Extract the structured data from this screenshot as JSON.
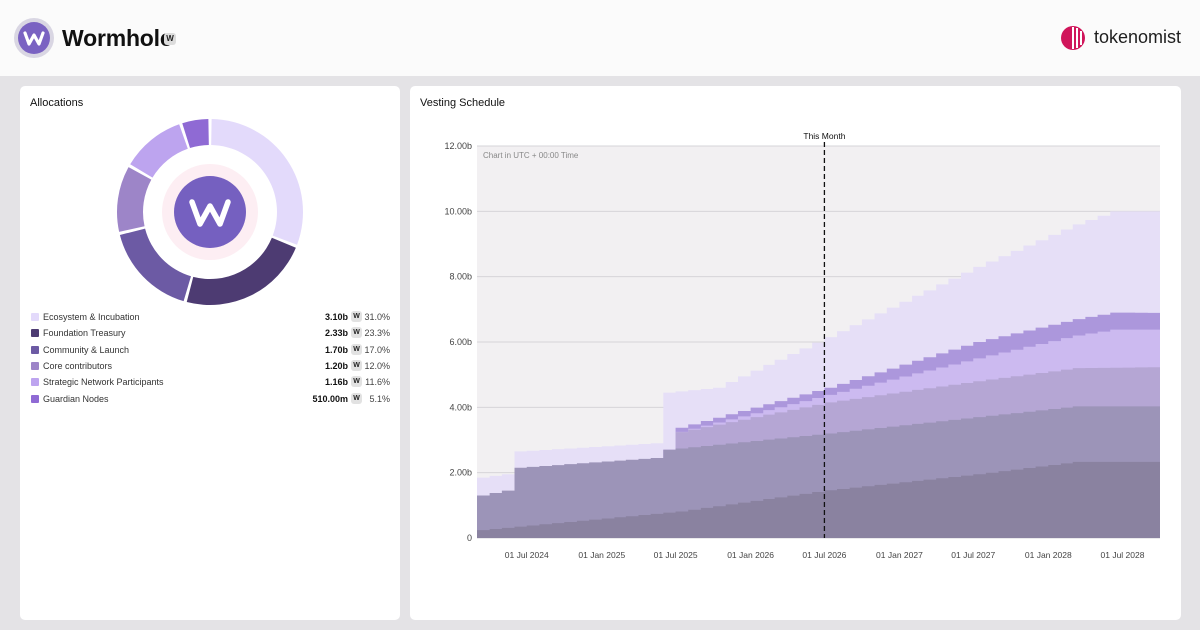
{
  "project": {
    "name": "Wormhole",
    "token_badge": "W",
    "logo_letter": "W"
  },
  "brand": {
    "name": "tokenomist"
  },
  "allocations": {
    "title": "Allocations",
    "center_letter": "W",
    "items": [
      {
        "label": "Ecosystem & Incubation",
        "amount": "3.10b",
        "token": "W",
        "percent": "31.0%",
        "value": 31.0,
        "color": "#e3dafb"
      },
      {
        "label": "Foundation Treasury",
        "amount": "2.33b",
        "token": "W",
        "percent": "23.3%",
        "value": 23.3,
        "color": "#4d3b72"
      },
      {
        "label": "Community & Launch",
        "amount": "1.70b",
        "token": "W",
        "percent": "17.0%",
        "value": 17.0,
        "color": "#6c5aa4"
      },
      {
        "label": "Core contributors",
        "amount": "1.20b",
        "token": "W",
        "percent": "12.0%",
        "value": 12.0,
        "color": "#9d85c8"
      },
      {
        "label": "Strategic Network Participants",
        "amount": "1.16b",
        "token": "W",
        "percent": "11.6%",
        "value": 11.6,
        "color": "#bda4ef"
      },
      {
        "label": "Guardian Nodes",
        "amount": "510.00m",
        "token": "W",
        "percent": "5.1%",
        "value": 5.1,
        "color": "#8f6ad4"
      }
    ]
  },
  "chart_data": {
    "type": "area",
    "title": "Vesting Schedule",
    "note": "Chart in UTC + 00:00 Time",
    "marker_label": "This Month",
    "marker_date": "2026-07-01",
    "x_start": "2024-03-01",
    "x_end": "2028-10-01",
    "ylim": [
      0,
      12
    ],
    "y_ticks": [
      0,
      2,
      4,
      6,
      8,
      10,
      12
    ],
    "y_tick_labels": [
      "0",
      "2.00b",
      "4.00b",
      "6.00b",
      "8.00b",
      "10.00b",
      "12.00b"
    ],
    "x_ticks": [
      "2024-07-01",
      "2025-01-01",
      "2025-07-01",
      "2026-01-01",
      "2026-07-01",
      "2027-01-01",
      "2027-07-01",
      "2028-01-01",
      "2028-07-01"
    ],
    "x_tick_labels": [
      "01 Jul 2024",
      "01 Jan 2025",
      "01 Jul 2025",
      "01 Jan 2026",
      "01 Jul 2026",
      "01 Jan 2027",
      "01 Jul 2027",
      "01 Jan 2028",
      "01 Jul 2028"
    ],
    "stack_order_bottom_to_top": [
      "Foundation Treasury",
      "Community & Launch",
      "Core contributors",
      "Strategic Network Participants",
      "Guardian Nodes",
      "Ecosystem & Incubation"
    ],
    "cumulative_series": [
      {
        "name": "Foundation Treasury",
        "color": "#8a82a0",
        "points": [
          [
            "2024-03-01",
            0.24
          ],
          [
            "2025-07-01",
            0.81
          ],
          [
            "2026-07-01",
            1.46
          ],
          [
            "2027-07-01",
            1.95
          ],
          [
            "2028-03-01",
            2.33
          ],
          [
            "2028-10-01",
            2.33
          ]
        ]
      },
      {
        "name": "Community & Launch",
        "color": "#9c94b8",
        "points": [
          [
            "2024-03-01",
            1.3
          ],
          [
            "2024-05-01",
            1.45
          ],
          [
            "2024-06-01",
            2.15
          ],
          [
            "2025-05-01",
            2.45
          ],
          [
            "2025-06-01",
            2.7
          ],
          [
            "2026-07-01",
            3.2
          ],
          [
            "2027-07-01",
            3.7
          ],
          [
            "2028-03-01",
            4.03
          ],
          [
            "2028-10-01",
            4.03
          ]
        ]
      },
      {
        "name": "Core contributors",
        "color": "#b5a6d4",
        "points": [
          [
            "2025-06-01",
            2.7
          ],
          [
            "2025-06-15",
            3.2
          ],
          [
            "2026-07-01",
            4.15
          ],
          [
            "2027-07-01",
            4.8
          ],
          [
            "2028-03-01",
            5.2
          ],
          [
            "2028-10-01",
            5.23
          ]
        ]
      },
      {
        "name": "Strategic Network Participants",
        "color": "#ccbaf0",
        "points": [
          [
            "2025-06-01",
            2.7
          ],
          [
            "2025-06-15",
            3.2
          ],
          [
            "2026-07-01",
            4.38
          ],
          [
            "2027-07-01",
            5.5
          ],
          [
            "2028-03-01",
            6.2
          ],
          [
            "2028-06-01",
            6.38
          ],
          [
            "2028-10-01",
            6.38
          ]
        ]
      },
      {
        "name": "Guardian Nodes",
        "color": "#ac97dc",
        "points": [
          [
            "2025-06-01",
            2.7
          ],
          [
            "2025-06-15",
            3.32
          ],
          [
            "2026-07-01",
            4.6
          ],
          [
            "2027-07-01",
            6.0
          ],
          [
            "2028-03-01",
            6.7
          ],
          [
            "2028-06-01",
            6.9
          ],
          [
            "2028-10-01",
            6.89
          ]
        ]
      },
      {
        "name": "Ecosystem & Incubation",
        "color": "#e6dff7",
        "points": [
          [
            "2024-03-01",
            1.85
          ],
          [
            "2024-05-01",
            1.95
          ],
          [
            "2024-06-01",
            2.65
          ],
          [
            "2025-05-01",
            2.9
          ],
          [
            "2025-06-01",
            4.45
          ],
          [
            "2025-10-01",
            4.6
          ],
          [
            "2026-07-01",
            6.15
          ],
          [
            "2027-07-01",
            8.3
          ],
          [
            "2028-03-01",
            9.6
          ],
          [
            "2028-06-01",
            10.0
          ],
          [
            "2028-10-01",
            10.0
          ]
        ]
      }
    ]
  }
}
